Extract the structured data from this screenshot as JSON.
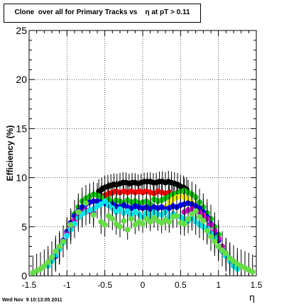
{
  "title": "Clone  over all for Primary Tracks vs    η at pT > 0.11",
  "footer": "Wed Nov  9 10:13:05 2011",
  "chart_data": {
    "type": "scatter",
    "title": "Clone  over all for Primary Tracks vs    η at pT > 0.11",
    "xlabel": "η",
    "ylabel": "Efficiency (%)",
    "xlim": [
      -1.5,
      1.5
    ],
    "ylim": [
      0,
      25
    ],
    "xticks": [
      "-1.5",
      "-1",
      "-0.5",
      "0",
      "0.5",
      "1",
      "1.5"
    ],
    "yticks": [
      "0",
      "5",
      "10",
      "15",
      "20",
      "25"
    ],
    "grid": true,
    "legend": "none",
    "series": [
      {
        "color": "#000000",
        "x": [
          -0.58,
          -0.54,
          -0.5,
          -0.46,
          -0.42,
          -0.38,
          -0.34,
          -0.3,
          -0.26,
          -0.22,
          -0.18,
          -0.14,
          -0.1,
          -0.06,
          -0.02,
          0.02,
          0.06,
          0.1,
          0.14,
          0.18,
          0.22,
          0.26,
          0.3,
          0.34,
          0.38,
          0.42,
          0.46,
          0.5,
          0.54,
          0.58
        ],
        "y": [
          8.6,
          8.8,
          9.0,
          9.1,
          9.2,
          9.3,
          9.3,
          9.4,
          9.5,
          9.5,
          9.4,
          9.5,
          9.5,
          9.4,
          9.5,
          9.6,
          9.6,
          9.6,
          9.5,
          9.5,
          9.6,
          9.6,
          9.5,
          9.6,
          9.5,
          9.4,
          9.3,
          9.1,
          9.0,
          8.8
        ]
      },
      {
        "color": "#ff0000",
        "x": [
          -0.5,
          -0.45,
          -0.4,
          -0.35,
          -0.3,
          -0.25,
          -0.2,
          -0.15,
          -0.1,
          -0.05,
          0.0,
          0.05,
          0.1,
          0.15,
          0.2,
          0.25,
          0.3,
          0.35,
          0.4
        ],
        "y": [
          8.2,
          8.4,
          8.5,
          8.6,
          8.5,
          8.6,
          8.5,
          8.6,
          8.5,
          8.6,
          8.5,
          8.6,
          8.5,
          8.4,
          8.6,
          8.5,
          8.4,
          8.5,
          8.3
        ]
      },
      {
        "color": "#00cc00",
        "x": [
          -1.0,
          -0.95,
          -0.9,
          -0.85,
          -0.8,
          -0.75,
          -0.7,
          -0.65,
          -0.6,
          -0.55,
          -0.5,
          -0.45,
          -0.4,
          -0.35,
          -0.3,
          -0.25,
          -0.2,
          -0.15,
          -0.1,
          -0.05,
          0.0,
          0.05,
          0.1,
          0.15,
          0.2,
          0.25,
          0.3,
          0.35,
          0.4,
          0.45,
          0.5,
          0.55,
          0.6,
          0.65,
          0.7,
          0.75,
          0.8,
          0.85,
          0.9,
          0.95,
          1.0
        ],
        "y": [
          4.3,
          5.2,
          6.3,
          7.0,
          7.6,
          7.9,
          8.1,
          8.3,
          8.2,
          8.0,
          7.6,
          7.8,
          7.5,
          7.7,
          7.6,
          7.4,
          7.7,
          7.5,
          7.6,
          7.4,
          7.5,
          7.6,
          7.3,
          7.8,
          7.6,
          7.7,
          7.9,
          8.1,
          8.3,
          8.4,
          8.6,
          8.7,
          8.5,
          8.3,
          8.0,
          7.5,
          7.0,
          6.4,
          5.8,
          5.0,
          4.2
        ]
      },
      {
        "color": "#ffee00",
        "x": [
          0.3,
          0.35,
          0.4,
          0.45,
          0.5,
          0.55,
          0.6,
          0.65,
          0.7
        ],
        "y": [
          7.0,
          7.5,
          7.8,
          8.0,
          8.1,
          8.0,
          7.8,
          7.5,
          7.1
        ]
      },
      {
        "color": "#0000ff",
        "x": [
          -1.15,
          -1.1,
          -1.05,
          -1.0,
          -0.95,
          -0.9,
          -0.85,
          -0.8,
          -0.75,
          -0.7,
          -0.65,
          -0.6,
          -0.55,
          -0.5,
          -0.45,
          -0.4,
          -0.35,
          -0.3,
          -0.25,
          -0.2,
          -0.15,
          -0.1,
          -0.05,
          0.0,
          0.05,
          0.1,
          0.15,
          0.2,
          0.25,
          0.3,
          0.35,
          0.4,
          0.45,
          0.5,
          0.55,
          0.6,
          0.65,
          0.7,
          0.75,
          0.8,
          0.85,
          0.9,
          0.95,
          1.0,
          1.05,
          1.1
        ],
        "y": [
          2.0,
          2.8,
          3.6,
          4.5,
          5.4,
          6.1,
          6.6,
          7.0,
          7.3,
          7.5,
          7.6,
          7.6,
          7.5,
          7.4,
          7.2,
          7.3,
          7.1,
          7.0,
          7.2,
          7.0,
          6.9,
          7.1,
          7.0,
          6.9,
          7.0,
          6.8,
          7.0,
          6.9,
          7.0,
          6.8,
          6.9,
          7.1,
          7.0,
          7.2,
          7.3,
          7.4,
          7.3,
          7.1,
          6.9,
          6.5,
          6.0,
          5.3,
          4.4,
          3.6,
          2.7,
          2.0
        ]
      },
      {
        "color": "#cc00cc",
        "x": [
          -1.2,
          -1.15,
          -1.1,
          -1.05,
          -1.0,
          -0.95,
          -0.9,
          -0.85,
          -0.8,
          -0.75,
          -0.7,
          -0.65,
          0.55,
          0.6,
          0.65,
          0.7,
          0.75,
          0.8,
          0.85,
          0.9,
          0.95,
          1.0,
          1.05,
          1.1,
          1.15,
          1.2
        ],
        "y": [
          1.6,
          2.2,
          2.8,
          3.5,
          4.3,
          5.0,
          5.7,
          6.2,
          6.5,
          6.7,
          6.6,
          6.4,
          6.5,
          6.7,
          6.8,
          6.6,
          6.5,
          6.2,
          5.8,
          5.2,
          4.6,
          3.8,
          3.0,
          2.3,
          1.8,
          1.3
        ]
      },
      {
        "color": "#00e5ee",
        "x": [
          -1.25,
          -1.2,
          -1.15,
          -1.1,
          -1.05,
          -1.0,
          -0.95,
          -0.9,
          -0.85,
          -0.8,
          -0.75,
          -0.7,
          -0.65,
          -0.6,
          -0.55,
          -0.5,
          -0.45,
          -0.4,
          -0.35,
          -0.3,
          -0.25,
          -0.2,
          -0.15,
          -0.1,
          -0.05,
          0.0,
          0.05,
          0.1,
          0.15,
          0.2,
          0.25,
          0.3,
          0.35,
          0.4,
          0.45,
          0.5,
          0.55,
          0.6,
          0.65,
          0.7,
          0.75,
          0.8,
          0.85,
          0.9,
          0.95,
          1.0,
          1.05,
          1.1,
          1.15,
          1.2,
          1.25
        ],
        "y": [
          1.0,
          1.5,
          2.1,
          2.7,
          3.4,
          4.1,
          4.7,
          5.3,
          5.9,
          6.3,
          6.5,
          6.7,
          6.8,
          7.1,
          7.3,
          7.6,
          7.2,
          6.9,
          6.5,
          6.8,
          6.4,
          6.6,
          6.2,
          6.5,
          6.3,
          6.0,
          6.4,
          6.1,
          6.5,
          6.3,
          6.2,
          6.5,
          6.0,
          6.3,
          6.1,
          6.0,
          5.8,
          5.6,
          5.9,
          5.5,
          5.2,
          5.0,
          4.8,
          4.3,
          3.8,
          3.0,
          2.5,
          2.0,
          1.5,
          1.0,
          0.7
        ]
      },
      {
        "color": "#66dd44",
        "x": [
          -1.45,
          -1.4,
          -1.35,
          -1.3,
          -1.25,
          -1.2,
          -1.15,
          -1.1,
          -1.05,
          -0.95,
          -0.85,
          -0.75,
          -0.65,
          -0.55,
          -0.5,
          -0.45,
          -0.4,
          -0.35,
          -0.3,
          -0.25,
          -0.2,
          -0.15,
          -0.1,
          -0.05,
          0.0,
          0.05,
          0.1,
          0.15,
          0.2,
          0.25,
          0.3,
          0.35,
          0.4,
          0.45,
          0.5,
          0.55,
          0.6,
          0.65,
          0.7,
          0.75,
          0.8,
          0.85,
          0.9,
          0.95,
          1.0,
          1.05,
          1.1,
          1.15,
          1.2,
          1.25,
          1.3,
          1.35,
          1.4,
          1.45
        ],
        "y": [
          0.3,
          0.5,
          0.7,
          1.0,
          1.4,
          1.9,
          2.5,
          3.0,
          3.5,
          5.2,
          6.5,
          7.4,
          6.2,
          5.5,
          5.2,
          6.1,
          5.8,
          5.3,
          5.0,
          5.6,
          4.7,
          5.8,
          5.2,
          5.5,
          5.3,
          5.8,
          5.5,
          5.9,
          5.6,
          5.4,
          5.7,
          5.5,
          6.0,
          6.1,
          5.4,
          5.3,
          5.8,
          6.3,
          6.6,
          6.0,
          5.6,
          4.6,
          4.0,
          3.5,
          3.0,
          2.6,
          2.3,
          1.8,
          1.5,
          1.2,
          1.0,
          0.8,
          0.6,
          0.4
        ]
      }
    ]
  }
}
